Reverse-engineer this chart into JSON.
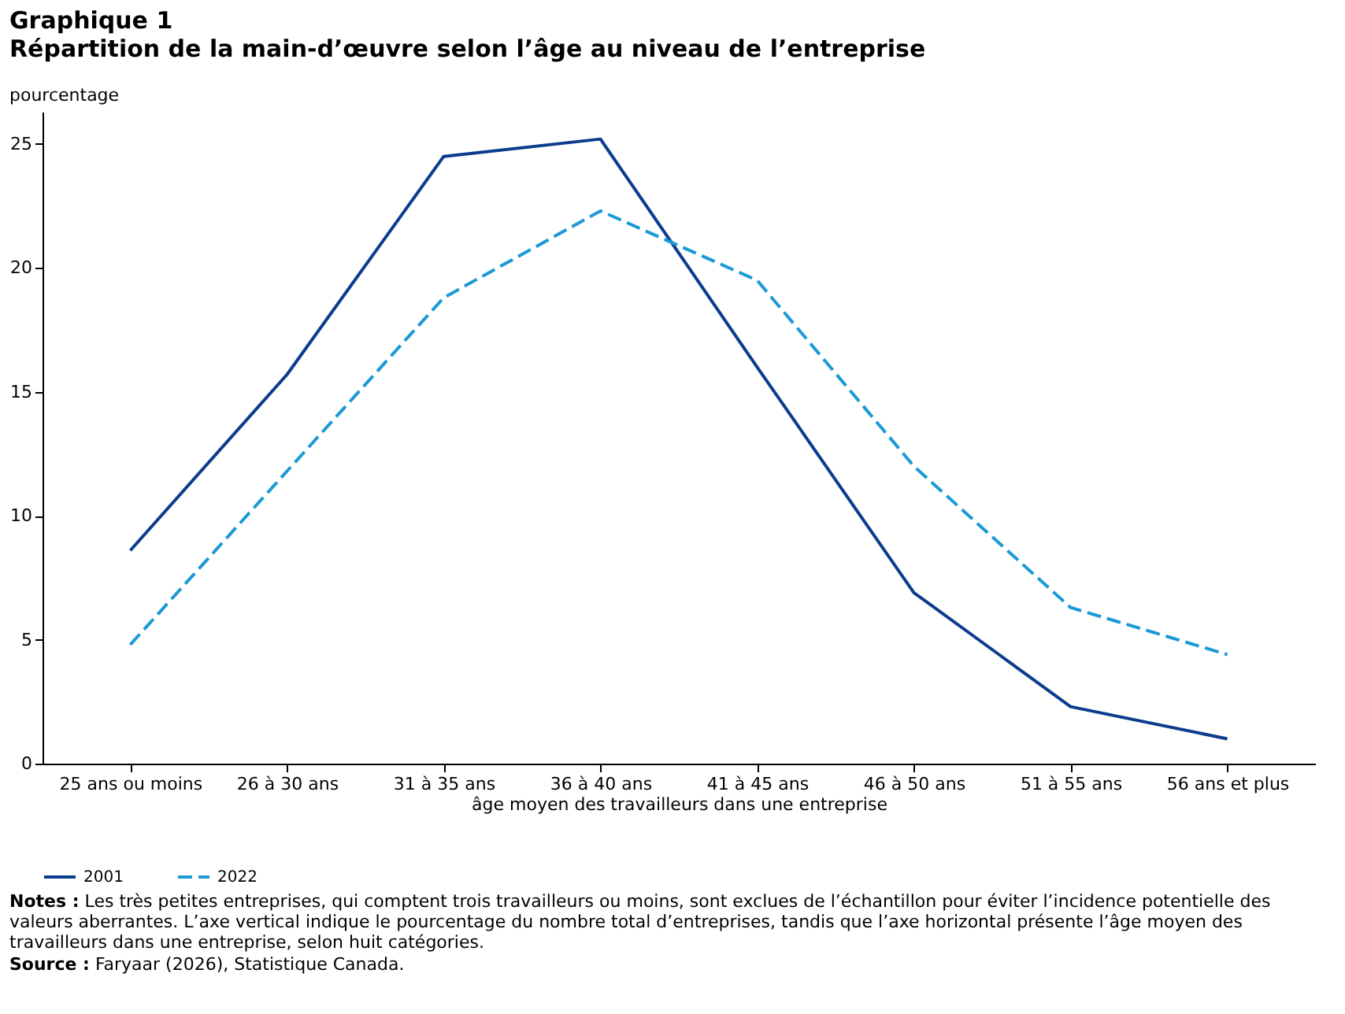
{
  "chart_data": {
    "type": "line",
    "title": "Graphique 1",
    "subtitle": "Répartition de la main-d’œuvre selon l’âge au niveau de l’entreprise",
    "ylabel": "pourcentage",
    "xlabel": "âge moyen des travailleurs dans une entreprise",
    "categories": [
      "25 ans ou moins",
      "26 à 30 ans",
      "31 à 35 ans",
      "36 à 40 ans",
      "41 à 45 ans",
      "46 à 50 ans",
      "51 à 55 ans",
      "56 ans et plus"
    ],
    "series": [
      {
        "name": "2001",
        "color": "#0c3c8c",
        "line_style": "solid",
        "values": [
          8.6,
          15.7,
          24.5,
          25.2,
          16.0,
          6.9,
          2.3,
          1.0
        ]
      },
      {
        "name": "2022",
        "color": "#1b9ad6",
        "line_style": "dashed",
        "values": [
          4.8,
          11.8,
          18.8,
          22.3,
          19.5,
          12.0,
          6.3,
          4.4
        ]
      }
    ],
    "ylim": [
      0,
      26.3
    ],
    "yticks": [
      0,
      5,
      10,
      15,
      20,
      25
    ],
    "grid": false,
    "legend": "bottom",
    "annotations": [
      "Notes : Les très petites entreprises, qui comptent trois travailleurs ou moins, sont exclues de l’échantillon pour éviter l’incidence potentielle des valeurs aberrantes. L’axe vertical indique le pourcentage du nombre total d’entreprises, tandis que l’axe horizontal présente l’âge moyen des travailleurs dans une entreprise, selon huit catégories.",
      "Source : Faryaar (2026), Statistique Canada."
    ]
  }
}
